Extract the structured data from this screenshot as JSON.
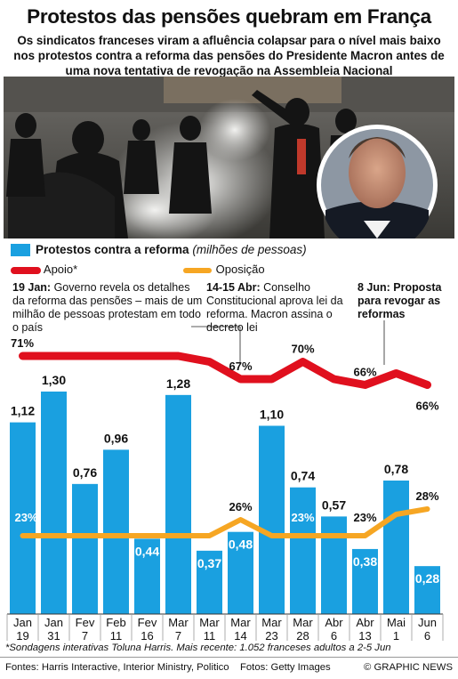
{
  "title": "Protestos das pensões quebram em França",
  "subtitle": "Os sindicatos franceses viram a afluência colapsar para o nível mais baixo nos protestos contra a reforma das pensões do Presidente Macron antes de uma nova tentativa de revogação na Assembleia Nacional",
  "legend": {
    "bars_label": "Protestos contra a reforma",
    "bars_unit": "(milhões de pessoas)",
    "support_label": "Apoio*",
    "opposition_label": "Oposição"
  },
  "annotations": {
    "a1_date": "19 Jan:",
    "a1_text": "Governo revela os detalhes da reforma das pensões – mais de um milhão de pessoas protestam em todo o país",
    "a2_date": "14-15 Abr:",
    "a2_text": "Conselho Constitucional aprova lei da reforma. Macron assina o decreto lei",
    "a3_text": "8 Jun: Proposta para revogar as reformas"
  },
  "chart_data": {
    "type": "bar",
    "categories": [
      "Jan 19",
      "Jan 31",
      "Fev 7",
      "Feb 11",
      "Fev 16",
      "Mar 7",
      "Mar 11",
      "Mar 14",
      "Mar 23",
      "Mar 28",
      "Abr 6",
      "Abr 13",
      "Mai 1",
      "Jun 6"
    ],
    "category_lines": [
      [
        "Jan",
        "19"
      ],
      [
        "Jan",
        "31"
      ],
      [
        "Fev",
        "7"
      ],
      [
        "Feb",
        "11"
      ],
      [
        "Fev",
        "16"
      ],
      [
        "Mar",
        "7"
      ],
      [
        "Mar",
        "11"
      ],
      [
        "Mar",
        "14"
      ],
      [
        "Mar",
        "23"
      ],
      [
        "Mar",
        "28"
      ],
      [
        "Abr",
        "6"
      ],
      [
        "Abr",
        "13"
      ],
      [
        "Mai",
        "1"
      ],
      [
        "Jun",
        "6"
      ]
    ],
    "series": [
      {
        "name": "Protestos contra a reforma",
        "type": "bar",
        "unit": "milhões de pessoas",
        "values": [
          1.12,
          1.3,
          0.76,
          0.96,
          0.44,
          1.28,
          0.37,
          0.48,
          1.1,
          0.74,
          0.57,
          0.38,
          0.78,
          0.28
        ],
        "labels": [
          "1,12",
          "1,30",
          "0,76",
          "0,96",
          "0,44",
          "1,28",
          "0,37",
          "0,48",
          "1,10",
          "0,74",
          "0,57",
          "0,38",
          "0,78",
          "0,28"
        ]
      },
      {
        "name": "Apoio*",
        "type": "line",
        "unit": "%",
        "values": [
          71,
          71,
          71,
          71,
          71,
          71,
          70,
          67,
          67,
          70,
          67,
          66,
          68,
          66
        ],
        "labels": [
          {
            "i": 0,
            "text": "71%"
          },
          {
            "i": 7,
            "text": "67%"
          },
          {
            "i": 9,
            "text": "70%"
          },
          {
            "i": 11,
            "text": "66%"
          },
          {
            "i": 13,
            "text": "66%"
          }
        ]
      },
      {
        "name": "Oposição",
        "type": "line",
        "unit": "%",
        "values": [
          23,
          23,
          23,
          23,
          23,
          23,
          23,
          26,
          23,
          23,
          23,
          23,
          27,
          28
        ],
        "labels": [
          {
            "i": 0,
            "text": "23%"
          },
          {
            "i": 7,
            "text": "26%"
          },
          {
            "i": 9,
            "text": "23%"
          },
          {
            "i": 11,
            "text": "23%"
          },
          {
            "i": 13,
            "text": "28%"
          }
        ]
      }
    ],
    "colors": {
      "bar": "#1aa0e0",
      "support": "#e0101e",
      "opposition": "#f6a623"
    }
  },
  "footnote": "*Sondagens interativas Toluna Harris. Mais recente: 1.052 franceses adultos a 2-5 Jun",
  "footer": {
    "sources": "Fontes: Harris Interactive, Interior Ministry, Politico",
    "photos": "Fotos: Getty Images",
    "brand": "© GRAPHIC NEWS"
  }
}
